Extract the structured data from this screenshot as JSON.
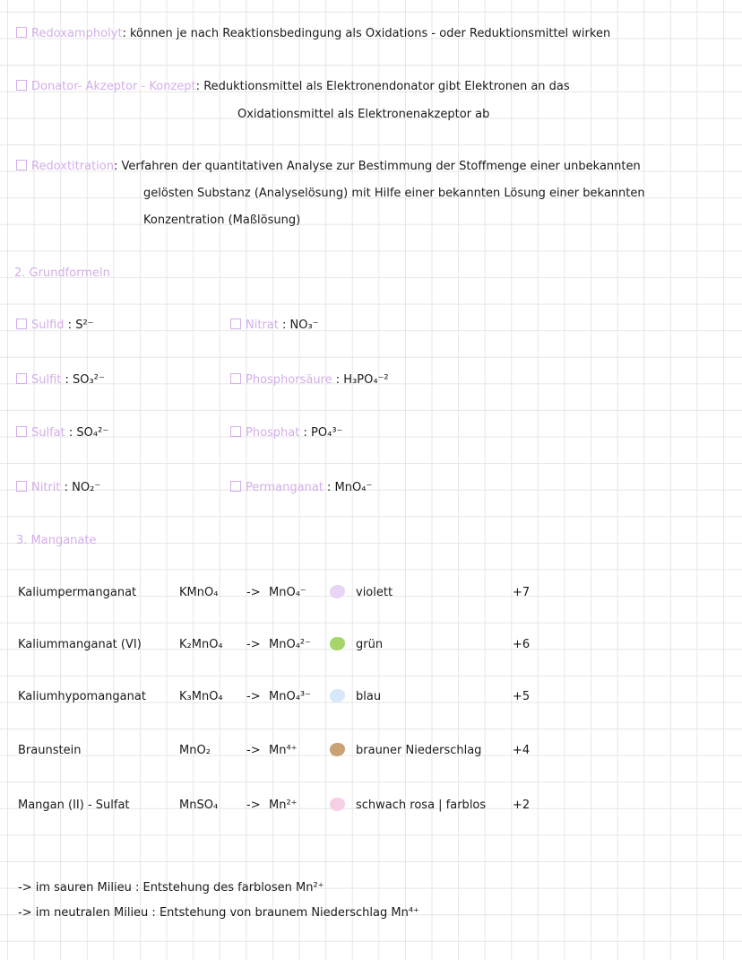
{
  "definitions": [
    {
      "term": "Redoxampholyt",
      "sep": ":",
      "lines": [
        "können je nach Reaktionsbedingung als Oxidations - oder Reduktionsmittel wirken"
      ]
    },
    {
      "term": "Donator- Akzeptor - Konzept",
      "sep": ":",
      "lines": [
        "Reduktionsmittel als Elektronendonator gibt Elektronen an das",
        "Oxidationsmittel als Elektronenakzeptor ab"
      ]
    },
    {
      "term": "Redoxtitration",
      "sep": ":",
      "lines": [
        "Verfahren der quantitativen Analyse zur Bestimmung der Stoffmenge einer unbekannten",
        "gelösten Substanz (Analyselösung) mit Hilfe einer bekannten Lösung einer bekannten",
        "Konzentration (Maßlösung)"
      ]
    }
  ],
  "section2": {
    "heading": "2. Grundformeln",
    "items": [
      {
        "name": "Sulfid",
        "formula": "S²⁻"
      },
      {
        "name": "Nitrat",
        "formula": "NO₃⁻"
      },
      {
        "name": "Sulfit",
        "formula": "SO₃²⁻"
      },
      {
        "name": "Phosphorsäure",
        "formula": "H₃PO₄⁻²"
      },
      {
        "name": "Sulfat",
        "formula": "SO₄²⁻"
      },
      {
        "name": "Phosphat",
        "formula": "PO₄³⁻"
      },
      {
        "name": "Nitrit",
        "formula": "NO₂⁻"
      },
      {
        "name": "Permanganat",
        "formula": "MnO₄⁻"
      }
    ]
  },
  "section3": {
    "heading": "3. Manganate",
    "arrow": "->",
    "rows": [
      {
        "name": "Kaliumpermanganat",
        "formula": "KMnO₄",
        "ion": "MnO₄⁻",
        "swatch": "#e8d4f5",
        "color": "violett",
        "ox": "+7"
      },
      {
        "name": "Kaliummanganat (VI)",
        "formula": "K₂MnO₄",
        "ion": "MnO₄²⁻",
        "swatch": "#a6d66a",
        "color": "grün",
        "ox": "+6"
      },
      {
        "name": "Kaliumhypomanganat",
        "formula": "K₃MnO₄",
        "ion": "MnO₄³⁻",
        "swatch": "#d6e8fa",
        "color": "blau",
        "ox": "+5"
      },
      {
        "name": "Braunstein",
        "formula": "MnO₂",
        "ion": "Mn⁴⁺",
        "swatch": "#c9a273",
        "color": "brauner Niederschlag",
        "ox": "+4"
      },
      {
        "name": "Mangan (II) - Sulfat",
        "formula": "MnSO₄",
        "ion": "Mn²⁺",
        "swatch": "#f6cfe6",
        "color": "schwach rosa | farblos",
        "ox": "+2"
      }
    ]
  },
  "notes": [
    {
      "arrow": "->",
      "text": "im sauren Milieu : Entstehung des farblosen Mn²⁺"
    },
    {
      "arrow": "->",
      "text": "im neutralen Milieu : Entstehung von braunem Niederschlag Mn⁴⁺"
    }
  ]
}
